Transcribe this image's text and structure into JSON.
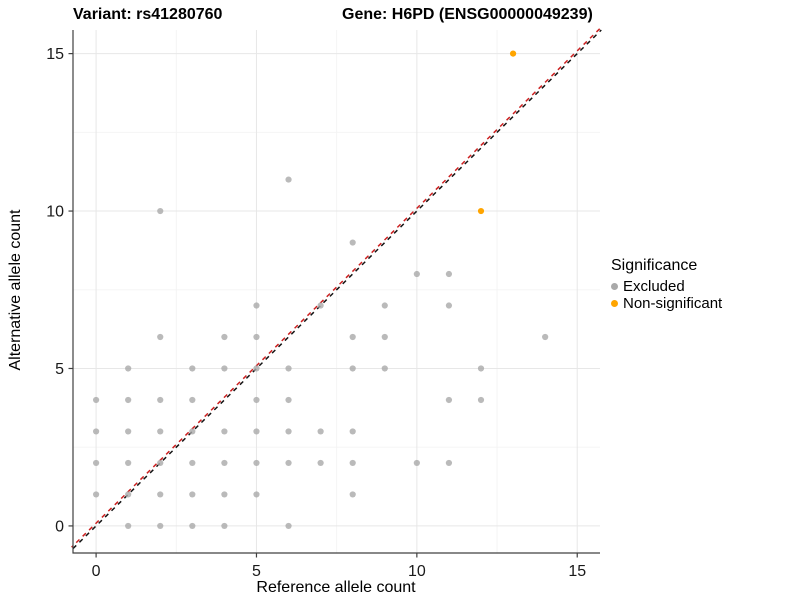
{
  "title": {
    "variant": "Variant: rs41280760",
    "gene": "Gene: H6PD (ENSG00000049239)"
  },
  "axes": {
    "xlabel": "Reference allele count",
    "ylabel": "Alternative allele count"
  },
  "legend": {
    "title": "Significance",
    "items": [
      {
        "label": "Excluded",
        "color": "#a9a9a9"
      },
      {
        "label": "Non-significant",
        "color": "#ffa500"
      }
    ]
  },
  "chart_data": {
    "type": "scatter",
    "title": "Variant: rs41280760  Gene: H6PD (ENSG00000049239)",
    "xlabel": "Reference allele count",
    "ylabel": "Alternative allele count",
    "xlim": [
      -0.72,
      15.71
    ],
    "ylim": [
      -0.86,
      15.75
    ],
    "xticks": [
      0,
      5,
      10,
      15
    ],
    "yticks": [
      0,
      5,
      10,
      15
    ],
    "xticks_minor": [
      2.5,
      7.5,
      12.5
    ],
    "yticks_minor": [
      2.5,
      7.5,
      12.5
    ],
    "grid": true,
    "legend_position": "right",
    "series": [
      {
        "name": "Excluded",
        "color": "#a9a9a9",
        "opacity": 0.8,
        "points": [
          [
            1,
            0
          ],
          [
            2,
            0
          ],
          [
            3,
            0
          ],
          [
            4,
            0
          ],
          [
            6,
            0
          ],
          [
            0,
            1
          ],
          [
            1,
            1
          ],
          [
            2,
            1
          ],
          [
            3,
            1
          ],
          [
            4,
            1
          ],
          [
            5,
            1
          ],
          [
            8,
            1
          ],
          [
            0,
            2
          ],
          [
            1,
            2
          ],
          [
            2,
            2
          ],
          [
            3,
            2
          ],
          [
            4,
            2
          ],
          [
            5,
            2
          ],
          [
            6,
            2
          ],
          [
            7,
            2
          ],
          [
            8,
            2
          ],
          [
            10,
            2
          ],
          [
            11,
            2
          ],
          [
            0,
            3
          ],
          [
            1,
            3
          ],
          [
            2,
            3
          ],
          [
            3,
            3
          ],
          [
            4,
            3
          ],
          [
            5,
            3
          ],
          [
            6,
            3
          ],
          [
            7,
            3
          ],
          [
            8,
            3
          ],
          [
            0,
            4
          ],
          [
            1,
            4
          ],
          [
            2,
            4
          ],
          [
            3,
            4
          ],
          [
            5,
            4
          ],
          [
            6,
            4
          ],
          [
            11,
            4
          ],
          [
            12,
            4
          ],
          [
            1,
            5
          ],
          [
            3,
            5
          ],
          [
            4,
            5
          ],
          [
            5,
            5
          ],
          [
            6,
            5
          ],
          [
            8,
            5
          ],
          [
            9,
            5
          ],
          [
            12,
            5
          ],
          [
            2,
            6
          ],
          [
            4,
            6
          ],
          [
            5,
            6
          ],
          [
            8,
            6
          ],
          [
            9,
            6
          ],
          [
            14,
            6
          ],
          [
            5,
            7
          ],
          [
            7,
            7
          ],
          [
            9,
            7
          ],
          [
            11,
            7
          ],
          [
            10,
            8
          ],
          [
            11,
            8
          ],
          [
            8,
            9
          ],
          [
            2,
            10
          ],
          [
            6,
            11
          ]
        ]
      },
      {
        "name": "Non-significant",
        "color": "#ffa500",
        "opacity": 1,
        "points": [
          [
            12,
            10
          ],
          [
            13,
            15
          ]
        ]
      }
    ],
    "reference_lines": [
      {
        "name": "identity-black",
        "slope": 1,
        "intercept": 0,
        "style": "dashed",
        "color": "#141414"
      },
      {
        "name": "identity-red",
        "slope": 1,
        "intercept": 0,
        "style": "dashed",
        "color": "#cc2020"
      }
    ],
    "colors": {
      "grid_major": "#e7e7e7",
      "grid_minor": "#f3f3f3",
      "axis_line": "#404040",
      "tick_label": "#1a1a1a"
    }
  }
}
